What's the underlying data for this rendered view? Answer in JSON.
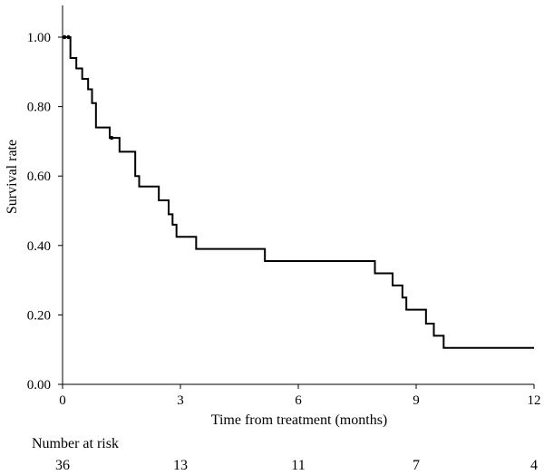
{
  "chart_data": {
    "type": "line",
    "xlabel": "Time from treatment (months)",
    "ylabel": "Survival rate",
    "xlim": [
      0,
      12
    ],
    "ylim": [
      0,
      1.0
    ],
    "x_ticks": [
      0,
      3,
      6,
      9,
      12
    ],
    "x_tick_labels": [
      "0",
      "3",
      "6",
      "9",
      "12"
    ],
    "y_ticks": [
      0.0,
      0.2,
      0.4,
      0.6,
      0.8,
      1.0
    ],
    "y_tick_labels": [
      "0.00",
      "0.20",
      "0.40",
      "0.60",
      "0.80",
      "1.00"
    ],
    "grid": false,
    "series": [
      {
        "step": "post",
        "color": "#000000",
        "x": [
          0.0,
          0.2,
          0.25,
          0.35,
          0.5,
          0.65,
          0.75,
          0.85,
          1.2,
          1.45,
          1.85,
          1.95,
          2.45,
          2.7,
          2.8,
          2.9,
          3.4,
          5.15,
          7.95,
          8.4,
          8.65,
          8.75,
          9.25,
          9.45,
          9.7,
          12.0
        ],
        "y": [
          1.0,
          0.94,
          0.94,
          0.91,
          0.88,
          0.85,
          0.81,
          0.74,
          0.71,
          0.67,
          0.6,
          0.57,
          0.53,
          0.49,
          0.46,
          0.425,
          0.39,
          0.355,
          0.32,
          0.285,
          0.25,
          0.215,
          0.175,
          0.14,
          0.105,
          0.105
        ]
      }
    ],
    "censor_marks": [
      {
        "x": 0.05,
        "y": 1.0
      },
      {
        "x": 0.15,
        "y": 1.0
      },
      {
        "x": 1.25,
        "y": 0.71
      }
    ],
    "risk_table": {
      "title": "Number at risk",
      "times": [
        0,
        3,
        6,
        9,
        12
      ],
      "counts": [
        "36",
        "13",
        "11",
        "7",
        "4"
      ]
    }
  }
}
